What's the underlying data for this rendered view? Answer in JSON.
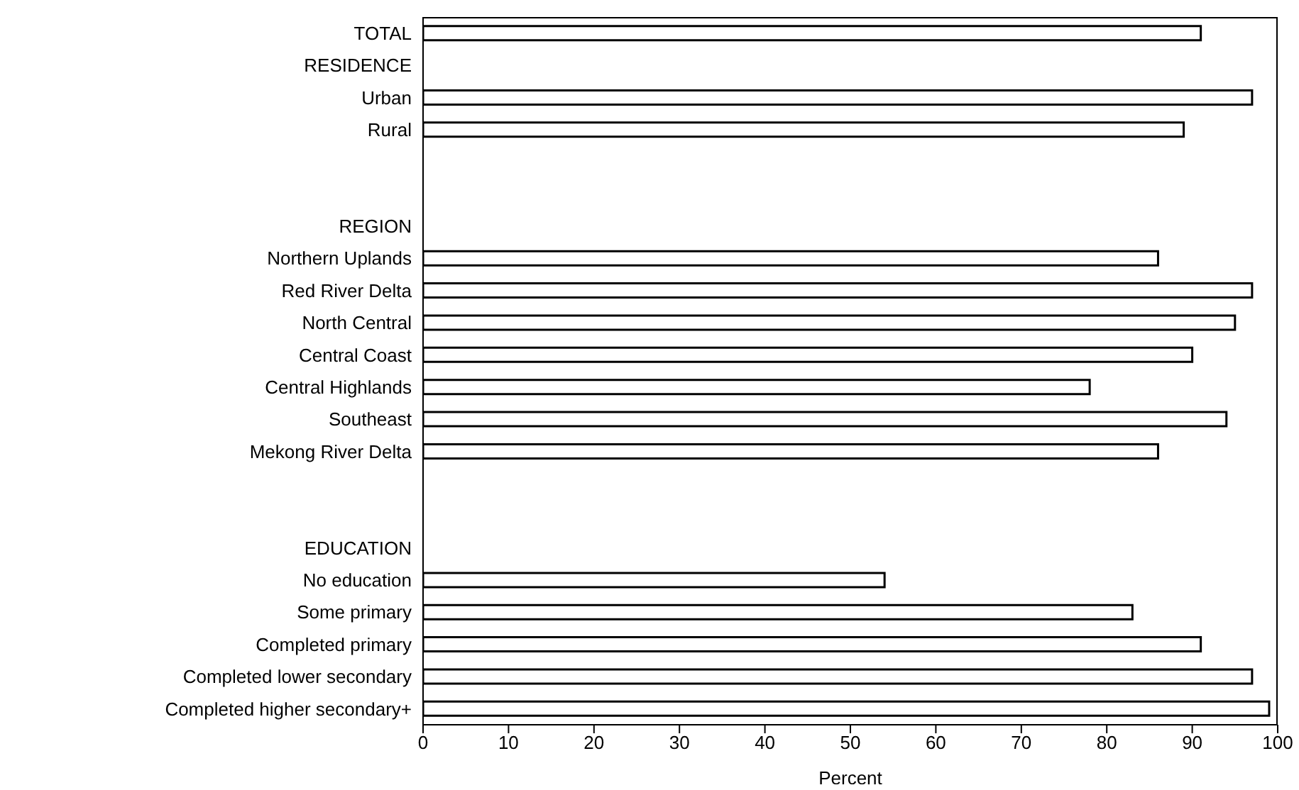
{
  "chart_data": {
    "type": "bar",
    "orientation": "horizontal",
    "xlabel": "Percent",
    "categories": [
      "TOTAL",
      "RESIDENCE",
      "Urban",
      "Rural",
      null,
      null,
      "REGION",
      "Northern Uplands",
      "Red River Delta",
      "North Central",
      "Central Coast",
      "Central Highlands",
      "Southeast",
      "Mekong River Delta",
      null,
      null,
      "EDUCATION",
      "No education",
      "Some primary",
      "Completed primary",
      "Completed lower secondary",
      "Completed higher secondary+"
    ],
    "values": [
      91,
      null,
      97,
      89,
      null,
      null,
      null,
      86,
      97,
      95,
      90,
      78,
      94,
      86,
      null,
      null,
      null,
      54,
      83,
      91,
      97,
      99
    ],
    "color": "#ffffff",
    "xlim": [
      0,
      100
    ],
    "xticks": [
      0,
      10,
      20,
      30,
      40,
      50,
      60,
      70,
      80,
      90,
      100
    ]
  }
}
